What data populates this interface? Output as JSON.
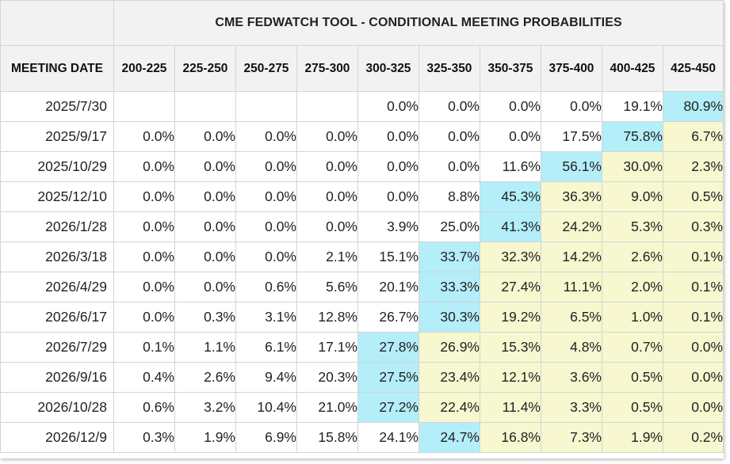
{
  "title": "CME FEDWATCH TOOL - CONDITIONAL MEETING PROBABILITIES",
  "date_header": "MEETING DATE",
  "columns": [
    "200-225",
    "225-250",
    "250-275",
    "275-300",
    "300-325",
    "325-350",
    "350-375",
    "375-400",
    "400-425",
    "425-450"
  ],
  "rows": [
    {
      "date": "2025/7/30",
      "cells": [
        "",
        "",
        "",
        "",
        "0.0%",
        "0.0%",
        "0.0%",
        "0.0%",
        "19.1%",
        "80.9%"
      ],
      "max_index": 9
    },
    {
      "date": "2025/9/17",
      "cells": [
        "0.0%",
        "0.0%",
        "0.0%",
        "0.0%",
        "0.0%",
        "0.0%",
        "0.0%",
        "17.5%",
        "75.8%",
        "6.7%"
      ],
      "max_index": 8
    },
    {
      "date": "2025/10/29",
      "cells": [
        "0.0%",
        "0.0%",
        "0.0%",
        "0.0%",
        "0.0%",
        "0.0%",
        "11.6%",
        "56.1%",
        "30.0%",
        "2.3%"
      ],
      "max_index": 7
    },
    {
      "date": "2025/12/10",
      "cells": [
        "0.0%",
        "0.0%",
        "0.0%",
        "0.0%",
        "0.0%",
        "8.8%",
        "45.3%",
        "36.3%",
        "9.0%",
        "0.5%"
      ],
      "max_index": 6
    },
    {
      "date": "2026/1/28",
      "cells": [
        "0.0%",
        "0.0%",
        "0.0%",
        "0.0%",
        "3.9%",
        "25.0%",
        "41.3%",
        "24.2%",
        "5.3%",
        "0.3%"
      ],
      "max_index": 6
    },
    {
      "date": "2026/3/18",
      "cells": [
        "0.0%",
        "0.0%",
        "0.0%",
        "2.1%",
        "15.1%",
        "33.7%",
        "32.3%",
        "14.2%",
        "2.6%",
        "0.1%"
      ],
      "max_index": 5
    },
    {
      "date": "2026/4/29",
      "cells": [
        "0.0%",
        "0.0%",
        "0.6%",
        "5.6%",
        "20.1%",
        "33.3%",
        "27.4%",
        "11.1%",
        "2.0%",
        "0.1%"
      ],
      "max_index": 5
    },
    {
      "date": "2026/6/17",
      "cells": [
        "0.0%",
        "0.3%",
        "3.1%",
        "12.8%",
        "26.7%",
        "30.3%",
        "19.2%",
        "6.5%",
        "1.0%",
        "0.1%"
      ],
      "max_index": 5
    },
    {
      "date": "2026/7/29",
      "cells": [
        "0.1%",
        "1.1%",
        "6.1%",
        "17.1%",
        "27.8%",
        "26.9%",
        "15.3%",
        "4.8%",
        "0.7%",
        "0.0%"
      ],
      "max_index": 4
    },
    {
      "date": "2026/9/16",
      "cells": [
        "0.4%",
        "2.6%",
        "9.4%",
        "20.3%",
        "27.5%",
        "23.4%",
        "12.1%",
        "3.6%",
        "0.5%",
        "0.0%"
      ],
      "max_index": 4
    },
    {
      "date": "2026/10/28",
      "cells": [
        "0.6%",
        "3.2%",
        "10.4%",
        "21.0%",
        "27.2%",
        "22.4%",
        "11.4%",
        "3.3%",
        "0.5%",
        "0.0%"
      ],
      "max_index": 4
    },
    {
      "date": "2026/12/9",
      "cells": [
        "0.3%",
        "1.9%",
        "6.9%",
        "15.8%",
        "24.1%",
        "24.7%",
        "16.8%",
        "7.3%",
        "1.9%",
        "0.2%"
      ],
      "max_index": 5
    }
  ],
  "colors": {
    "max_cell": "#b3eef9",
    "above_max_cell": "#f7f7d0",
    "header_bg": "#f2f2f2"
  }
}
